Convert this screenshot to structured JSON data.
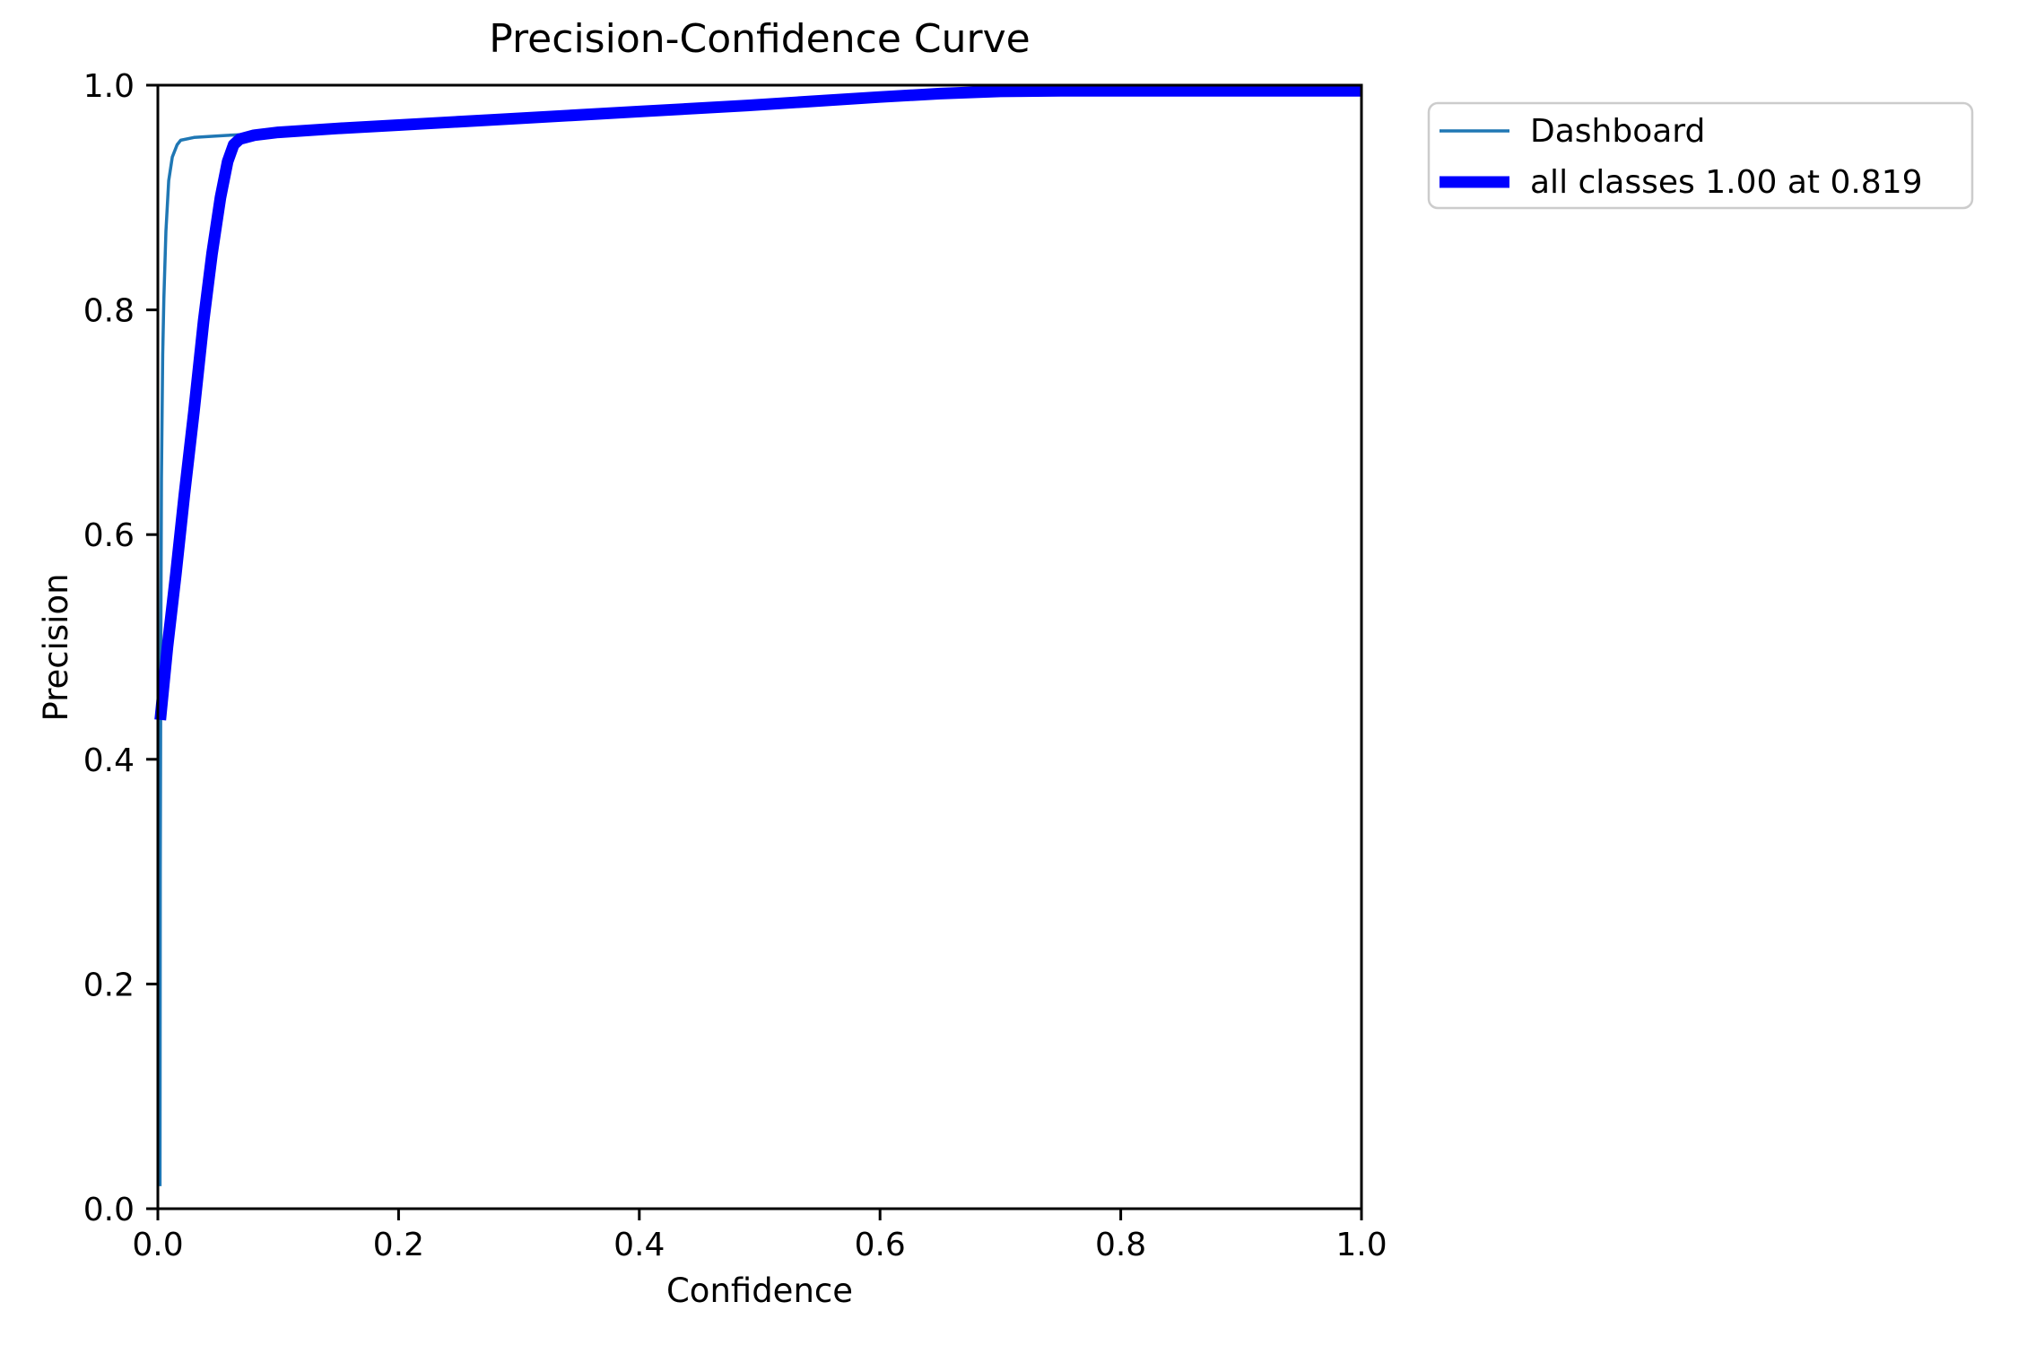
{
  "figure": {
    "background_color": "#ffffff",
    "frame_color": "#000000"
  },
  "chart_data": {
    "type": "line",
    "title": "Precision-Confidence Curve",
    "xlabel": "Confidence",
    "ylabel": "Precision",
    "xlim": [
      0.0,
      1.0
    ],
    "ylim": [
      0.0,
      1.0
    ],
    "grid": false,
    "x_ticks": [
      {
        "value": 0.0,
        "label": "0.0"
      },
      {
        "value": 0.2,
        "label": "0.2"
      },
      {
        "value": 0.4,
        "label": "0.4"
      },
      {
        "value": 0.6,
        "label": "0.6"
      },
      {
        "value": 0.8,
        "label": "0.8"
      },
      {
        "value": 1.0,
        "label": "1.0"
      }
    ],
    "y_ticks": [
      {
        "value": 0.0,
        "label": "0.0"
      },
      {
        "value": 0.2,
        "label": "0.2"
      },
      {
        "value": 0.4,
        "label": "0.4"
      },
      {
        "value": 0.6,
        "label": "0.6"
      },
      {
        "value": 0.8,
        "label": "0.8"
      },
      {
        "value": 1.0,
        "label": "1.0"
      }
    ],
    "legend": {
      "position": "outside-upper-right",
      "border_color": "#cccccc",
      "entries": [
        {
          "label": "Dashboard",
          "color": "#1f77b4",
          "line_width": 3.5
        },
        {
          "label": "all classes 1.00 at 0.819",
          "color": "#0000ff",
          "line_width": 13
        }
      ]
    },
    "series": [
      {
        "name": "Dashboard",
        "color": "#1f77b4",
        "line_width": 3.5,
        "points": [
          [
            0.0018,
            0.02
          ],
          [
            0.002,
            0.3
          ],
          [
            0.0025,
            0.52
          ],
          [
            0.003,
            0.65
          ],
          [
            0.004,
            0.76
          ],
          [
            0.005,
            0.81
          ],
          [
            0.0067,
            0.87
          ],
          [
            0.009,
            0.915
          ],
          [
            0.012,
            0.936
          ],
          [
            0.016,
            0.947
          ],
          [
            0.019,
            0.951
          ],
          [
            0.03,
            0.9535
          ],
          [
            0.045,
            0.9545
          ],
          [
            0.06,
            0.9555
          ],
          [
            0.08,
            0.9565
          ],
          [
            0.1,
            0.958
          ],
          [
            0.15,
            0.9615
          ],
          [
            0.2,
            0.9645
          ],
          [
            0.3,
            0.9705
          ],
          [
            0.4,
            0.9765
          ],
          [
            0.49,
            0.982
          ],
          [
            0.6,
            0.9895
          ],
          [
            0.65,
            0.9925
          ],
          [
            0.7,
            0.9945
          ],
          [
            0.75,
            0.995
          ],
          [
            1.0,
            0.995
          ]
        ]
      },
      {
        "name": "all classes",
        "color": "#0000ff",
        "line_width": 13,
        "points": [
          [
            0.002,
            0.435
          ],
          [
            0.008,
            0.5
          ],
          [
            0.015,
            0.565
          ],
          [
            0.022,
            0.635
          ],
          [
            0.03,
            0.71
          ],
          [
            0.038,
            0.79
          ],
          [
            0.045,
            0.85
          ],
          [
            0.052,
            0.9
          ],
          [
            0.058,
            0.932
          ],
          [
            0.063,
            0.947
          ],
          [
            0.068,
            0.952
          ],
          [
            0.08,
            0.9555
          ],
          [
            0.1,
            0.958
          ],
          [
            0.15,
            0.9615
          ],
          [
            0.2,
            0.9645
          ],
          [
            0.3,
            0.9705
          ],
          [
            0.4,
            0.9765
          ],
          [
            0.49,
            0.982
          ],
          [
            0.6,
            0.9895
          ],
          [
            0.65,
            0.9925
          ],
          [
            0.7,
            0.9945
          ],
          [
            0.75,
            0.995
          ],
          [
            1.0,
            0.995
          ]
        ]
      }
    ]
  }
}
